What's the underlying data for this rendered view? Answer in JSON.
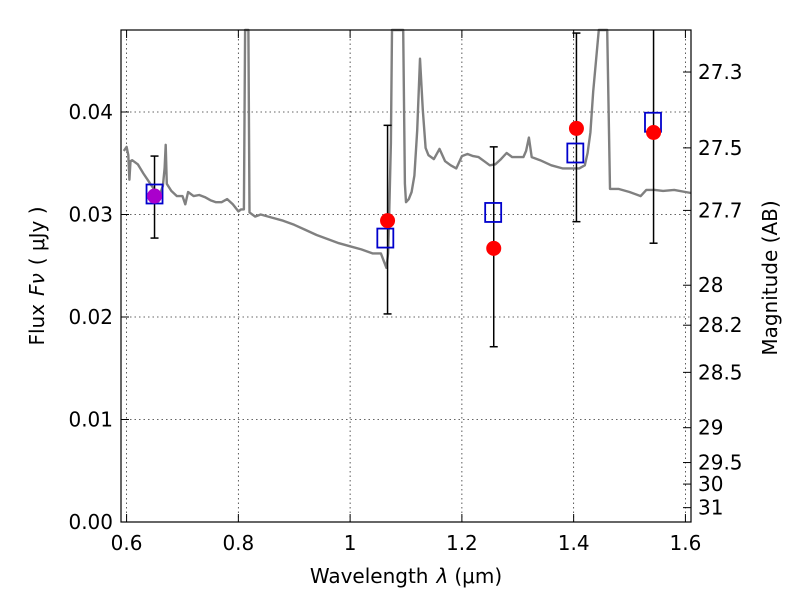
{
  "chart_data": {
    "type": "scatter",
    "xlabel": "Wavelength",
    "xlabel_symbol": "λ",
    "xlabel_unit": "(μm)",
    "ylabel": "Flux",
    "ylabel_symbol": "Fν",
    "ylabel_unit": "( μJy )",
    "y2label": "Magnitude (AB)",
    "xlim": [
      0.59,
      1.61
    ],
    "ylim": [
      0.0,
      0.048
    ],
    "grid": true,
    "x_ticks": [
      0.6,
      0.8,
      1.0,
      1.2,
      1.4,
      1.6
    ],
    "x_tick_labels": [
      "0.6",
      "0.8",
      "1",
      "1.2",
      "1.4",
      "1.6"
    ],
    "y_ticks": [
      0.0,
      0.01,
      0.02,
      0.03,
      0.04
    ],
    "y_tick_labels": [
      "0.00",
      "0.01",
      "0.02",
      "0.03",
      "0.04"
    ],
    "y2_ticks": [
      {
        "label": "27.3",
        "flux": 0.0439
      },
      {
        "label": "27.5",
        "flux": 0.0365
      },
      {
        "label": "27.7",
        "flux": 0.0304
      },
      {
        "label": "28",
        "flux": 0.0231
      },
      {
        "label": "28.2",
        "flux": 0.0192
      },
      {
        "label": "28.5",
        "flux": 0.0146
      },
      {
        "label": "29",
        "flux": 0.0092
      },
      {
        "label": "29.5",
        "flux": 0.0058
      },
      {
        "label": "30",
        "flux": 0.0037
      },
      {
        "label": "31",
        "flux": 0.0014
      }
    ],
    "series": [
      {
        "kind": "model-spectrum",
        "color": "#808080",
        "points": [
          [
            0.595,
            0.0362
          ],
          [
            0.6,
            0.0366
          ],
          [
            0.603,
            0.0358
          ],
          [
            0.605,
            0.0334
          ],
          [
            0.607,
            0.0352
          ],
          [
            0.61,
            0.0353
          ],
          [
            0.62,
            0.0349
          ],
          [
            0.63,
            0.034
          ],
          [
            0.64,
            0.0332
          ],
          [
            0.65,
            0.0324
          ],
          [
            0.66,
            0.032
          ],
          [
            0.665,
            0.0328
          ],
          [
            0.668,
            0.0345
          ],
          [
            0.67,
            0.0368
          ],
          [
            0.672,
            0.033
          ],
          [
            0.68,
            0.0323
          ],
          [
            0.69,
            0.0318
          ],
          [
            0.7,
            0.0318
          ],
          [
            0.705,
            0.031
          ],
          [
            0.71,
            0.0322
          ],
          [
            0.72,
            0.0318
          ],
          [
            0.73,
            0.0319
          ],
          [
            0.74,
            0.0317
          ],
          [
            0.75,
            0.0314
          ],
          [
            0.76,
            0.0312
          ],
          [
            0.77,
            0.0312
          ],
          [
            0.78,
            0.0315
          ],
          [
            0.79,
            0.031
          ],
          [
            0.8,
            0.0303
          ],
          [
            0.805,
            0.0305
          ],
          [
            0.81,
            0.0305
          ],
          [
            0.812,
            0.048
          ],
          [
            0.818,
            0.048
          ],
          [
            0.82,
            0.0302
          ],
          [
            0.83,
            0.0298
          ],
          [
            0.84,
            0.03
          ],
          [
            0.86,
            0.0297
          ],
          [
            0.88,
            0.0294
          ],
          [
            0.9,
            0.029
          ],
          [
            0.92,
            0.0285
          ],
          [
            0.94,
            0.028
          ],
          [
            0.96,
            0.0276
          ],
          [
            0.98,
            0.0272
          ],
          [
            1.0,
            0.0269
          ],
          [
            1.02,
            0.0266
          ],
          [
            1.04,
            0.0262
          ],
          [
            1.055,
            0.0262
          ],
          [
            1.06,
            0.0255
          ],
          [
            1.065,
            0.0248
          ],
          [
            1.068,
            0.0262
          ],
          [
            1.07,
            0.03
          ],
          [
            1.073,
            0.037
          ],
          [
            1.075,
            0.048
          ],
          [
            1.095,
            0.048
          ],
          [
            1.098,
            0.033
          ],
          [
            1.1,
            0.0312
          ],
          [
            1.105,
            0.0315
          ],
          [
            1.11,
            0.0322
          ],
          [
            1.115,
            0.0338
          ],
          [
            1.12,
            0.0382
          ],
          [
            1.125,
            0.0452
          ],
          [
            1.13,
            0.0402
          ],
          [
            1.135,
            0.0365
          ],
          [
            1.14,
            0.0358
          ],
          [
            1.15,
            0.0354
          ],
          [
            1.16,
            0.0364
          ],
          [
            1.17,
            0.0352
          ],
          [
            1.18,
            0.0348
          ],
          [
            1.19,
            0.0345
          ],
          [
            1.2,
            0.0357
          ],
          [
            1.21,
            0.0359
          ],
          [
            1.22,
            0.0357
          ],
          [
            1.23,
            0.0356
          ],
          [
            1.24,
            0.0352
          ],
          [
            1.25,
            0.0348
          ],
          [
            1.26,
            0.0349
          ],
          [
            1.27,
            0.0354
          ],
          [
            1.28,
            0.036
          ],
          [
            1.29,
            0.0356
          ],
          [
            1.3,
            0.0356
          ],
          [
            1.31,
            0.0356
          ],
          [
            1.315,
            0.0362
          ],
          [
            1.32,
            0.0375
          ],
          [
            1.325,
            0.0356
          ],
          [
            1.34,
            0.0353
          ],
          [
            1.36,
            0.0348
          ],
          [
            1.38,
            0.0345
          ],
          [
            1.4,
            0.0345
          ],
          [
            1.41,
            0.0345
          ],
          [
            1.42,
            0.0348
          ],
          [
            1.425,
            0.036
          ],
          [
            1.43,
            0.038
          ],
          [
            1.435,
            0.042
          ],
          [
            1.44,
            0.045
          ],
          [
            1.445,
            0.048
          ],
          [
            1.46,
            0.048
          ],
          [
            1.465,
            0.0325
          ],
          [
            1.48,
            0.0325
          ],
          [
            1.5,
            0.0322
          ],
          [
            1.52,
            0.0318
          ],
          [
            1.53,
            0.0324
          ],
          [
            1.545,
            0.0324
          ],
          [
            1.56,
            0.0323
          ],
          [
            1.58,
            0.0324
          ],
          [
            1.6,
            0.0322
          ],
          [
            1.61,
            0.0321
          ]
        ]
      },
      {
        "kind": "observed",
        "marker": "circle",
        "color": "#ff0000",
        "points": [
          {
            "x": 0.65,
            "y": 0.0318,
            "yerr_low": 0.0277,
            "yerr_high": 0.0357
          },
          {
            "x": 1.067,
            "y": 0.0294,
            "yerr_low": 0.0203,
            "yerr_high": 0.0387
          },
          {
            "x": 1.257,
            "y": 0.0267,
            "yerr_low": 0.0171,
            "yerr_high": 0.0366
          },
          {
            "x": 1.405,
            "y": 0.0384,
            "yerr_low": 0.0293,
            "yerr_high": 0.0477
          },
          {
            "x": 1.543,
            "y": 0.038,
            "yerr_low": 0.0272,
            "yerr_high": 0.049
          }
        ]
      },
      {
        "kind": "model-band",
        "marker": "open-square",
        "color": "#0000cc",
        "points": [
          {
            "x": 0.65,
            "y": 0.032
          },
          {
            "x": 1.063,
            "y": 0.0277
          },
          {
            "x": 1.256,
            "y": 0.0302
          },
          {
            "x": 1.403,
            "y": 0.036
          },
          {
            "x": 1.542,
            "y": 0.039
          }
        ]
      }
    ],
    "overlap_marker_color": "#aa00cc"
  }
}
